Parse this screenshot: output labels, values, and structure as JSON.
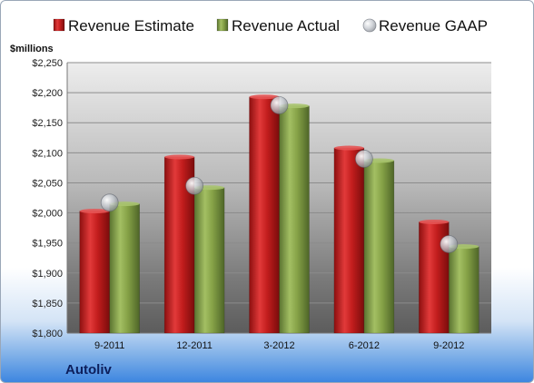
{
  "company": "Autoliv",
  "chart_data": {
    "type": "bar",
    "ylabel": "$millions",
    "ylim": [
      1800,
      2250
    ],
    "ytick_step": 50,
    "grid": true,
    "legend_position": "top",
    "categories": [
      "9-2011",
      "12-2011",
      "3-2012",
      "6-2012",
      "9-2012"
    ],
    "series": [
      {
        "name": "Revenue Estimate",
        "kind": "bar",
        "color": "#d42a2a",
        "values": [
          2003,
          2093,
          2193,
          2108,
          1985
        ]
      },
      {
        "name": "Revenue Actual",
        "kind": "bar",
        "color": "#8aa84a",
        "values": [
          2015,
          2042,
          2178,
          2087,
          1944
        ]
      },
      {
        "name": "Revenue GAAP",
        "kind": "marker",
        "color": "#b8bcc4",
        "values": [
          2017,
          2045,
          2179,
          2090,
          1948
        ]
      }
    ]
  }
}
